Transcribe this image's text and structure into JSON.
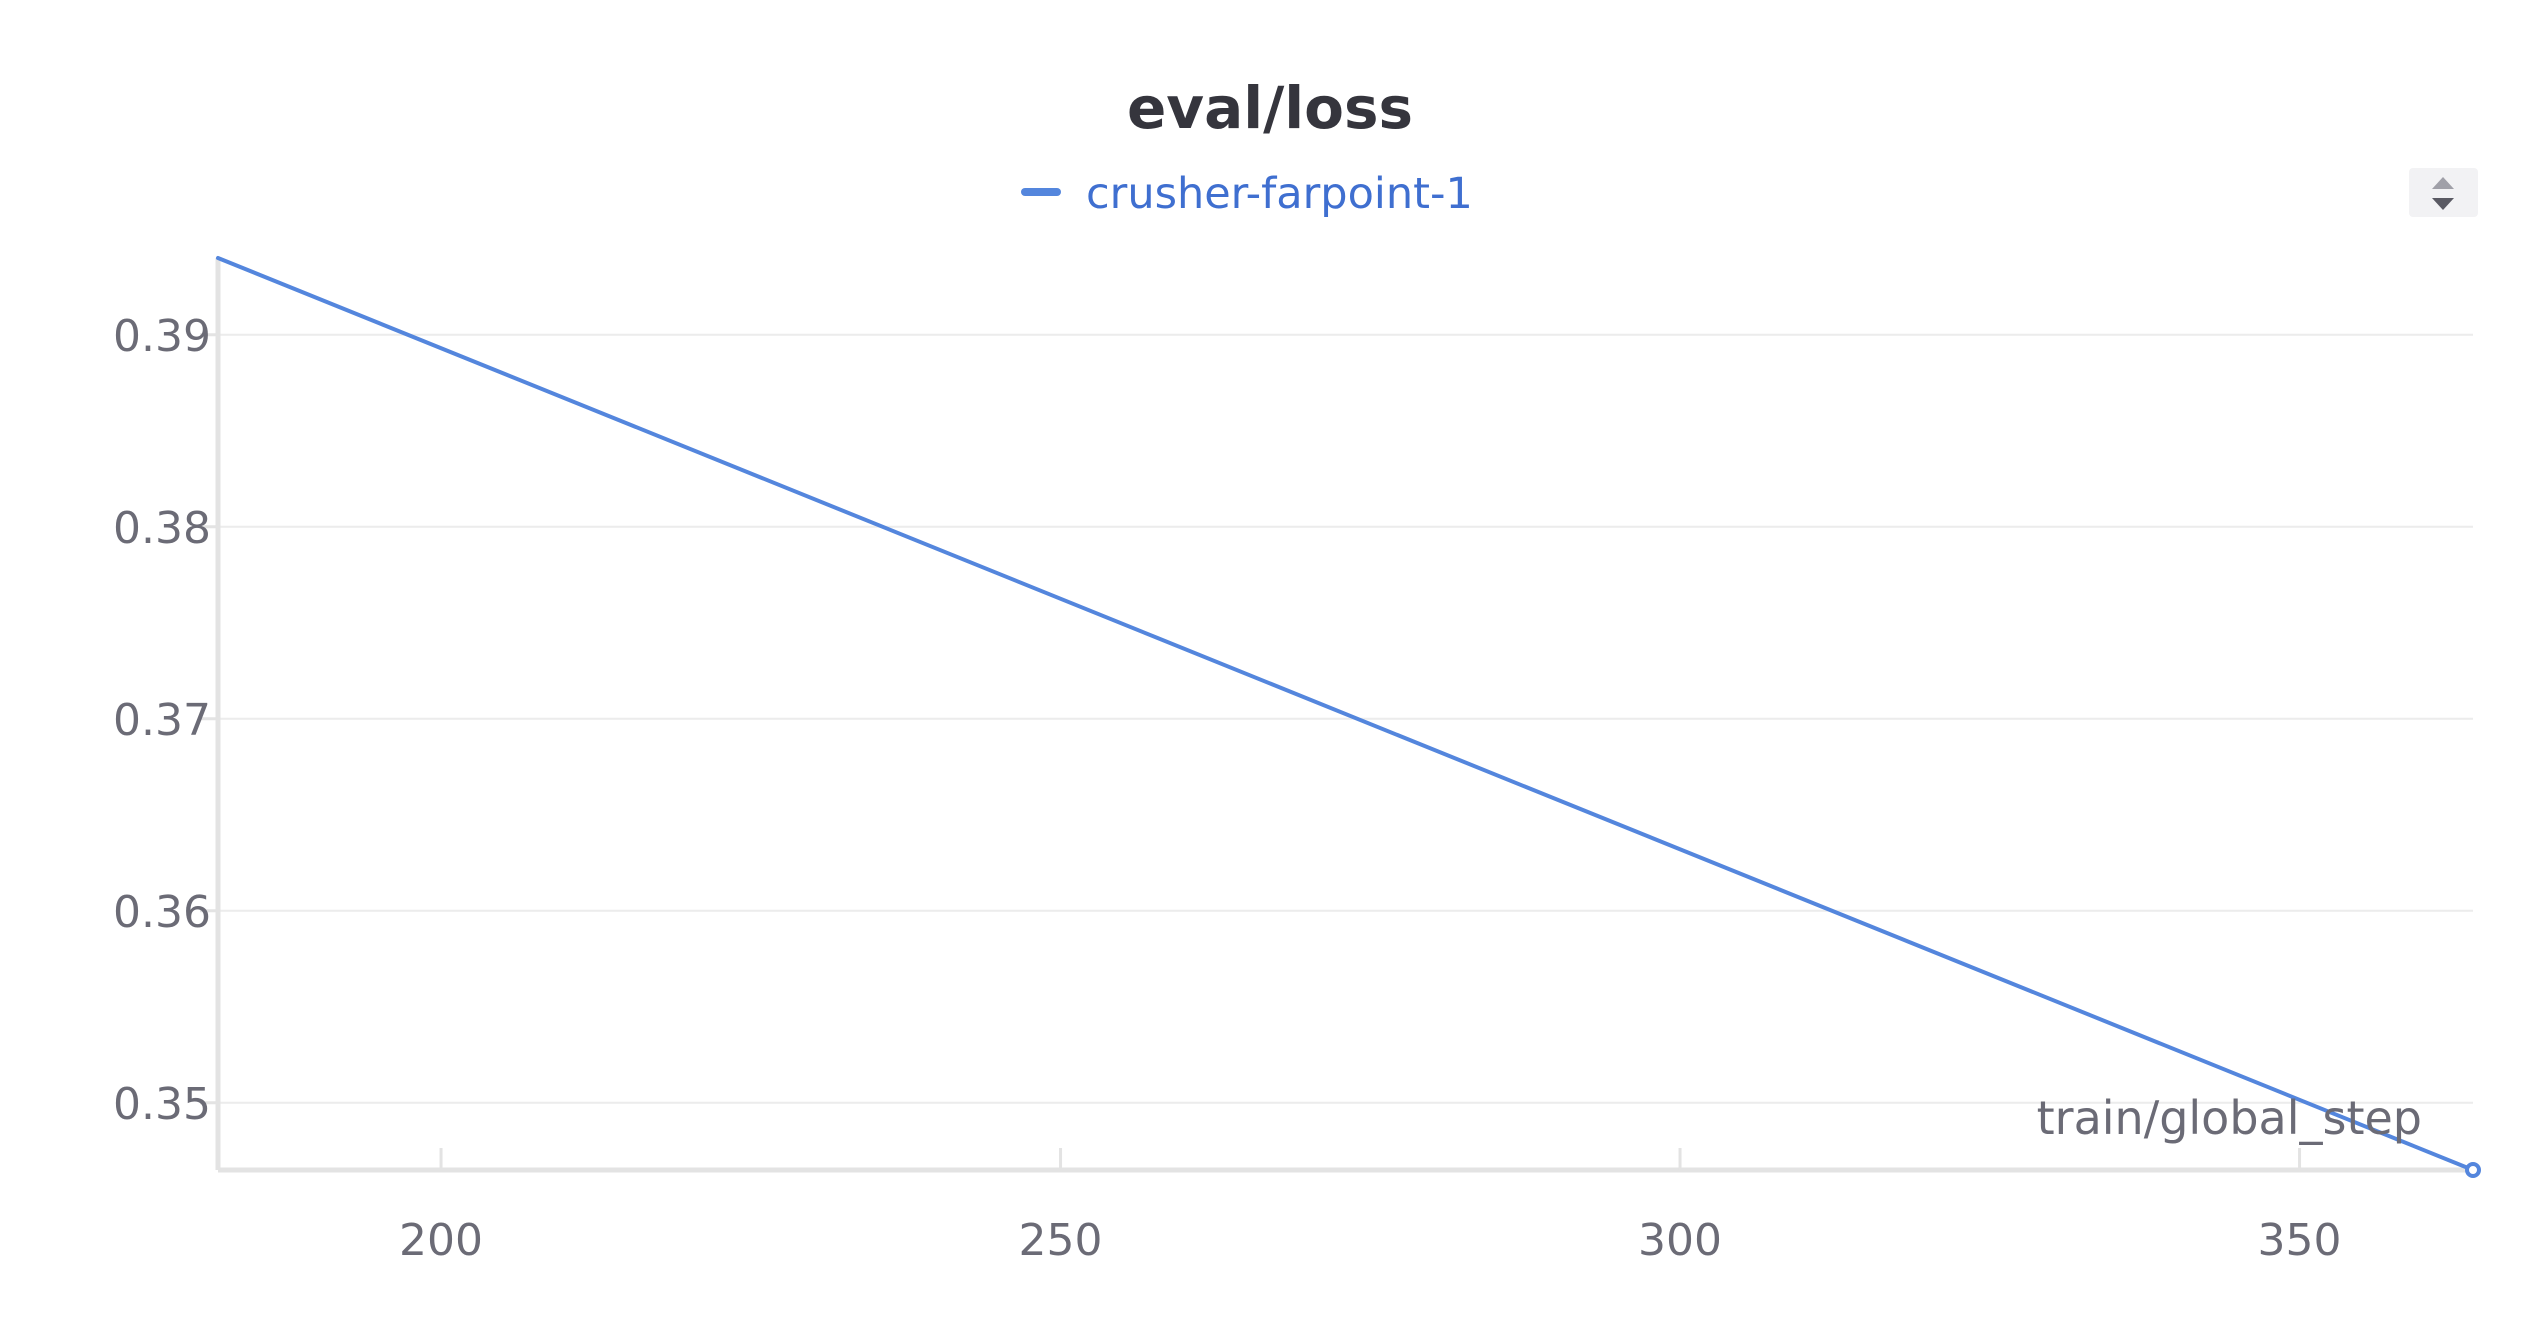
{
  "chart_data": {
    "type": "line",
    "title": "eval/loss",
    "xlabel": "train/global_step",
    "ylabel": "",
    "xlim": [
      182,
      364
    ],
    "ylim": [
      0.3465,
      0.394
    ],
    "x_ticks": [
      200,
      250,
      300,
      350
    ],
    "y_ticks": [
      0.35,
      0.36,
      0.37,
      0.38,
      0.39
    ],
    "grid": true,
    "legend_position": "top-center",
    "series": [
      {
        "name": "crusher-farpoint-1",
        "color": "#5486dd",
        "x": [
          182,
          364
        ],
        "y": [
          0.394,
          0.3465
        ]
      }
    ]
  },
  "colors": {
    "series": "#5486dd",
    "legend_text": "#3f6fd0",
    "grid": "#ececec",
    "axis": "#e3e3e3",
    "tick_text": "#6b6b76",
    "title": "#35353d",
    "sort_button_bg": "#f2f2f4",
    "sort_button_icon": "#5a5a63"
  },
  "controls": {
    "sort_icon": "sort-up-down-icon"
  }
}
